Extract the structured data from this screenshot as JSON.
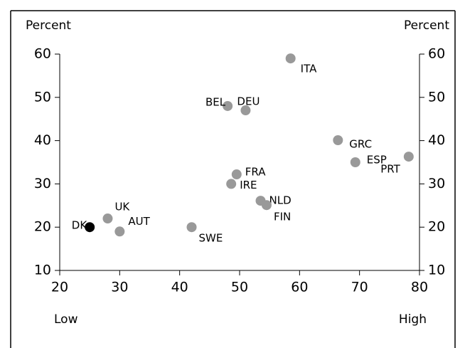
{
  "chart_data": {
    "type": "scatter",
    "y_label": "Percent",
    "y2_label": "Percent",
    "x_low_label": "Low",
    "x_high_label": "High",
    "labels": [
      "DK",
      "UK",
      "AUT",
      "SWE",
      "BEL",
      "DEU",
      "ITA",
      "FRA",
      "IRE",
      "NLD",
      "FIN",
      "GRC",
      "ESP",
      "PRT"
    ],
    "x": [
      25,
      28,
      30,
      42,
      48,
      51,
      58.5,
      49.5,
      48.6,
      53.5,
      54.5,
      66.4,
      69.3,
      78.2
    ],
    "values": [
      20,
      22,
      19,
      20,
      48,
      47,
      59,
      32.2,
      30,
      26.1,
      25.1,
      40.1,
      35,
      36.3
    ],
    "colors": [
      "#000000",
      "#999999",
      "#999999",
      "#999999",
      "#999999",
      "#999999",
      "#999999",
      "#999999",
      "#999999",
      "#999999",
      "#999999",
      "#999999",
      "#999999",
      "#999999"
    ],
    "xlim": [
      20,
      80
    ],
    "xticks": [
      20,
      30,
      40,
      50,
      60,
      70,
      80
    ],
    "ylim": [
      10,
      60
    ],
    "yticks": [
      10,
      20,
      30,
      40,
      50,
      60
    ],
    "y2lim": [
      10,
      60
    ],
    "y2ticks": [
      10,
      20,
      30,
      40,
      50,
      60
    ]
  }
}
